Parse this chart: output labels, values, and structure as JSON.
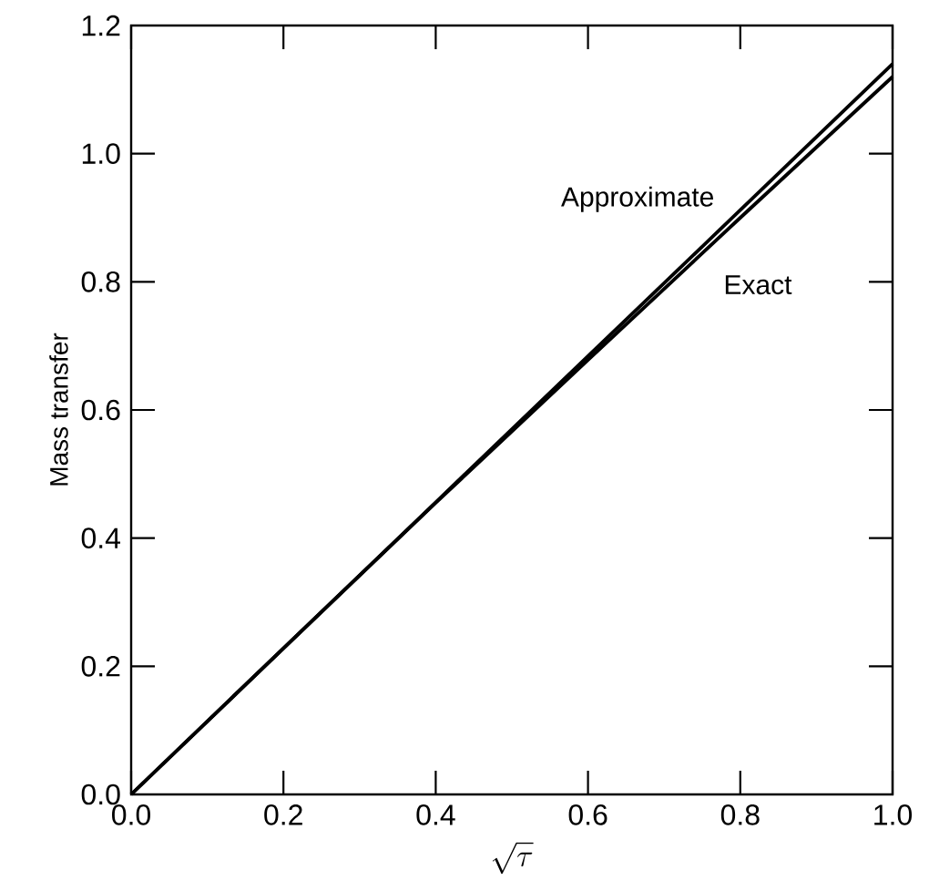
{
  "chart_data": {
    "type": "line",
    "xlabel": "\\sqrt{\\tau}",
    "ylabel": "Mass transfer",
    "xlim": [
      0,
      1
    ],
    "ylim": [
      0,
      1.2
    ],
    "xticks": [
      {
        "value": 0,
        "label": "0.0"
      },
      0.2,
      0.4,
      0.6,
      0.8,
      {
        "value": 1,
        "label": "1.0"
      }
    ],
    "yticks": [
      {
        "value": 0,
        "label": "0.0"
      },
      0.2,
      0.4,
      0.6,
      0.8,
      {
        "value": 1,
        "label": "1.0"
      },
      1.2
    ],
    "x": [
      0,
      0.2,
      0.4,
      0.6,
      0.8,
      1
    ],
    "series": [
      {
        "name": "Approximate",
        "color": "#000000",
        "values": [
          0,
          0.228,
          0.456,
          0.684,
          0.912,
          1.14
        ]
      },
      {
        "name": "Exact",
        "color": "#000000",
        "values": [
          0,
          0.228,
          0.455,
          0.678,
          0.9,
          1.12
        ]
      }
    ],
    "line_style": "solid"
  }
}
